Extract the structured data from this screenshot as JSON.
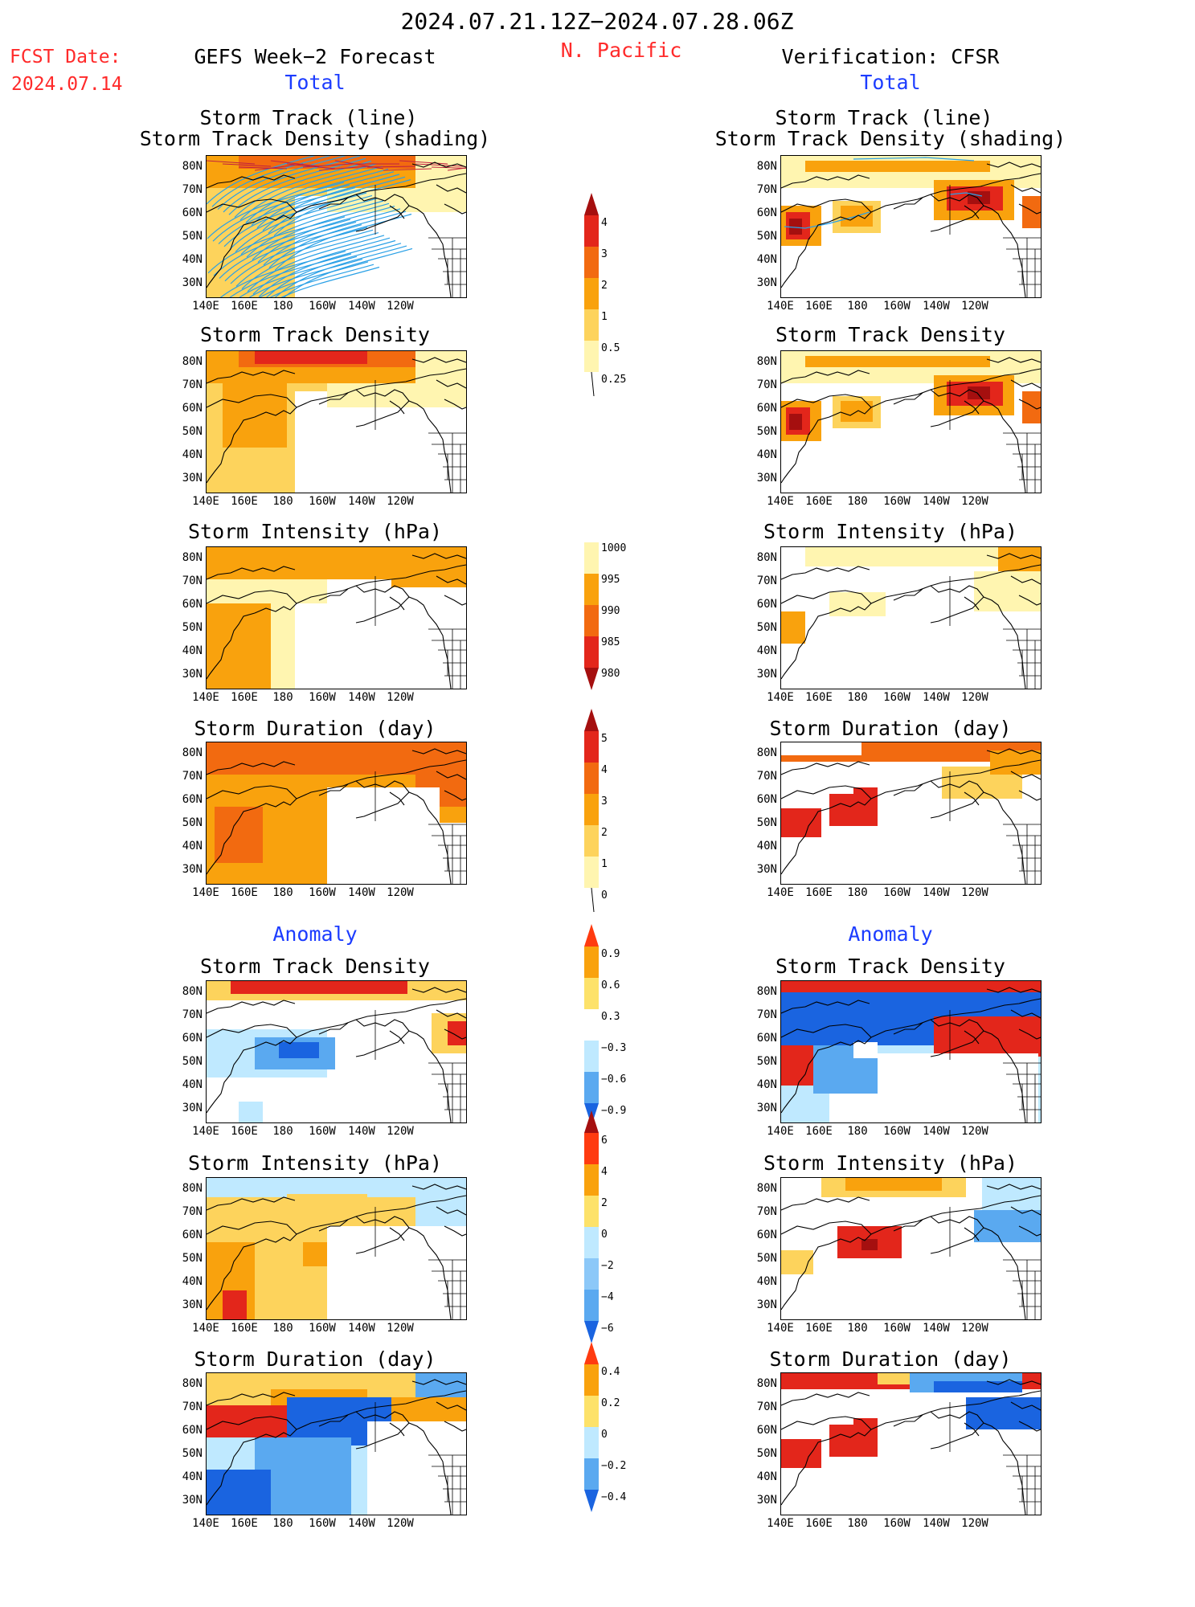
{
  "header": {
    "valid_range": "2024.07.21.12Z−2024.07.28.06Z",
    "fcst_label": "FCST Date:",
    "fcst_date": "2024.07.14",
    "left_title": "GEFS Week−2 Forecast",
    "region": "N. Pacific",
    "right_title": "Verification: CFSR",
    "total_label": "Total",
    "anomaly_label": "Anomaly"
  },
  "axes": {
    "lat_ticks": [
      "80N",
      "70N",
      "60N",
      "50N",
      "40N",
      "30N"
    ],
    "lon_ticks": [
      "140E",
      "160E",
      "180",
      "160W",
      "140W",
      "120W"
    ]
  },
  "panels": {
    "track_line": [
      "Storm Track (line)",
      "Storm Track Density (shading)"
    ],
    "track_density": "Storm Track Density",
    "intensity": "Storm Intensity (hPa)",
    "duration": "Storm Duration (day)"
  },
  "colorbars": {
    "density": {
      "labels": [
        "4",
        "3",
        "2",
        "1",
        "0.5",
        "0.25"
      ],
      "colors": [
        "#a50f0f",
        "#e3261b",
        "#f26a10",
        "#f9a20d",
        "#fdd35c",
        "#fff5b0"
      ]
    },
    "intensity": {
      "labels": [
        "1000",
        "995",
        "990",
        "985",
        "980"
      ],
      "colors": [
        "#fff5b0",
        "#f9a20d",
        "#f26a10",
        "#e3261b",
        "#a50f0f"
      ]
    },
    "duration": {
      "labels": [
        "5",
        "4",
        "3",
        "2",
        "1",
        "0"
      ],
      "colors": [
        "#a50f0f",
        "#e3261b",
        "#f26a10",
        "#f9a20d",
        "#fdd35c",
        "#fff5b0"
      ]
    },
    "anom_density": {
      "labels": [
        "0.9",
        "0.6",
        "0.3",
        "−0.3",
        "−0.6",
        "−0.9"
      ],
      "colors": [
        "#ff3b10",
        "#f9a20d",
        "#fde26a",
        "#ffffff",
        "#bfe9ff",
        "#5aa9f0",
        "#1a64e0"
      ]
    },
    "anom_intensity": {
      "labels": [
        "6",
        "4",
        "2",
        "0",
        "−2",
        "−4",
        "−6"
      ],
      "colors": [
        "#a50f0f",
        "#ff3b10",
        "#f9a20d",
        "#fde26a",
        "#bfe9ff",
        "#8cc8f8",
        "#5aa9f0",
        "#1a64e0"
      ]
    },
    "anom_duration": {
      "labels": [
        "0.4",
        "0.2",
        "0",
        "−0.2",
        "−0.4"
      ],
      "colors": [
        "#ff3b10",
        "#f9a20d",
        "#fde26a",
        "#bfe9ff",
        "#5aa9f0",
        "#1a64e0"
      ]
    }
  },
  "palette": {
    "y1": "#fff5b0",
    "y2": "#fdd35c",
    "o1": "#f9a20d",
    "o2": "#f26a10",
    "r1": "#e3261b",
    "r2": "#a50f0f",
    "b0": "#bfe9ff",
    "b1": "#5aa9f0",
    "b2": "#1a64e0",
    "track": "#2aa0e6"
  }
}
